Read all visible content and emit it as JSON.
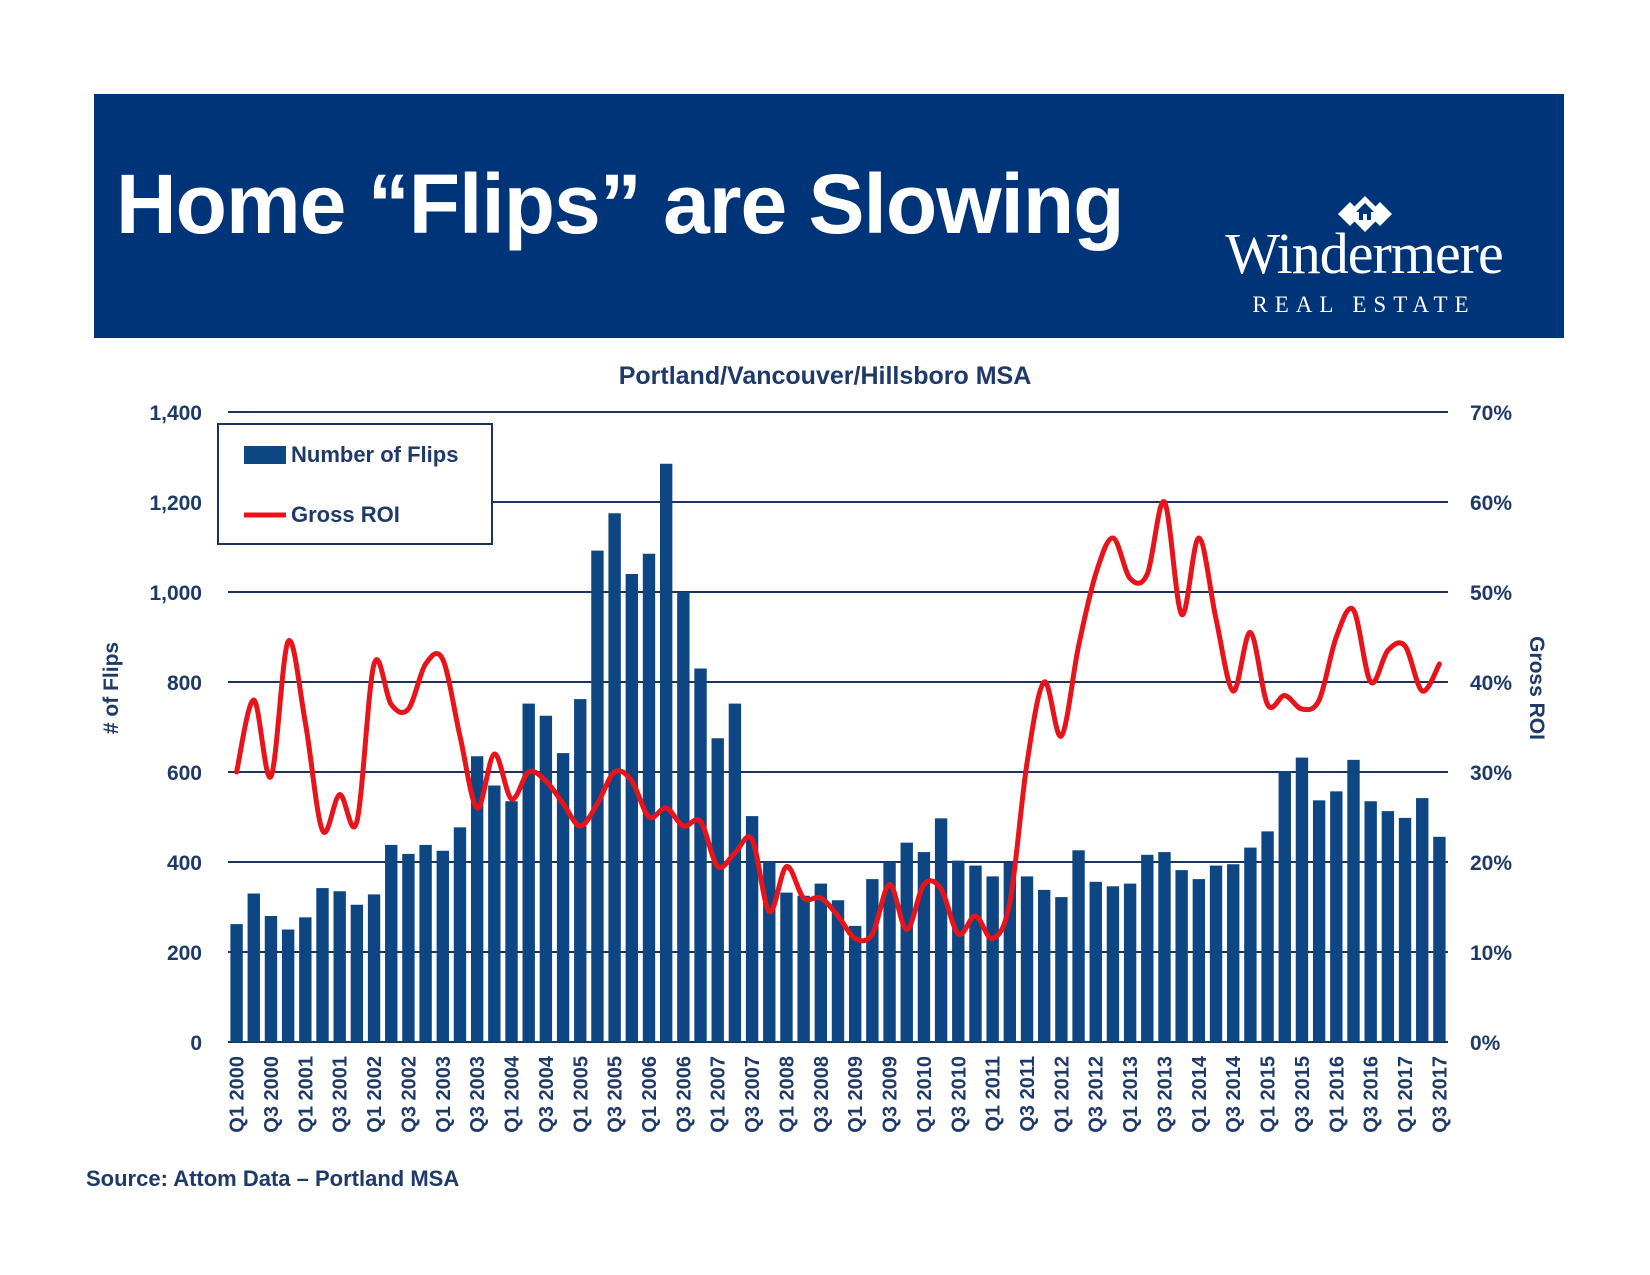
{
  "banner": {
    "title": "Home “Flips” are Slowing",
    "logo_name": "Windermere",
    "logo_sub": "REAL ESTATE",
    "logo_icon": "diamond-house-icon"
  },
  "colors": {
    "navy": "#003478",
    "bar": "#0e4583",
    "line": "#e8141b",
    "text": "#1f3a68"
  },
  "source": "Source: Attom Data – Portland MSA",
  "chart_data": {
    "type": "bar",
    "title": "Portland/Vancouver/Hillsboro MSA",
    "ylabel": "# of Flips",
    "y2label": "Gross ROI",
    "ylim": [
      0,
      1400
    ],
    "y2lim": [
      0,
      70
    ],
    "yticks": [
      "0",
      "200",
      "400",
      "600",
      "800",
      "1,000",
      "1,200",
      "1,400"
    ],
    "y2ticks": [
      "0%",
      "10%",
      "20%",
      "30%",
      "40%",
      "50%",
      "60%",
      "70%"
    ],
    "grid": true,
    "legend_position": "top-left",
    "x_tick_labels": [
      "Q1 2000",
      "Q3 2000",
      "Q1 2001",
      "Q3 2001",
      "Q1 2002",
      "Q3 2002",
      "Q1 2003",
      "Q3 2003",
      "Q1 2004",
      "Q3 2004",
      "Q1 2005",
      "Q3 2005",
      "Q1 2006",
      "Q3 2006",
      "Q1 2007",
      "Q3 2007",
      "Q1 2008",
      "Q3 2008",
      "Q1 2009",
      "Q3 2009",
      "Q1 2010",
      "Q3 2010",
      "Q1 2011",
      "Q3 2011",
      "Q1 2012",
      "Q3 2012",
      "Q1 2013",
      "Q3 2013",
      "Q1 2014",
      "Q3 2014",
      "Q1 2015",
      "Q3 2015",
      "Q1 2016",
      "Q3 2016",
      "Q1 2017",
      "Q3 2017"
    ],
    "series": [
      {
        "name": "Number of Flips",
        "type": "bar",
        "axis": "left",
        "values": [
          262,
          330,
          280,
          250,
          277,
          342,
          335,
          305,
          328,
          438,
          418,
          438,
          425,
          477,
          635,
          570,
          535,
          752,
          725,
          642,
          762,
          1092,
          1175,
          1040,
          1085,
          1285,
          1000,
          830,
          675,
          752,
          502,
          400,
          332,
          325,
          352,
          315,
          258,
          362,
          400,
          443,
          422,
          497,
          403,
          392,
          368,
          398,
          368,
          338,
          322,
          426,
          356,
          346,
          352,
          416,
          422,
          382,
          362,
          392,
          395,
          432,
          468,
          602,
          632,
          537,
          557,
          627,
          535,
          513,
          498,
          542,
          456
        ]
      },
      {
        "name": "Gross ROI",
        "type": "line",
        "axis": "right",
        "unit": "%",
        "values": [
          30,
          38,
          29.5,
          44.5,
          35.5,
          23.5,
          27.5,
          24.5,
          42,
          37.5,
          37,
          42,
          42.5,
          34,
          26,
          32,
          27,
          30,
          29,
          26.5,
          24,
          26.5,
          30,
          29,
          25,
          26,
          24,
          24.5,
          19.5,
          21,
          22.5,
          14.5,
          19.5,
          16,
          16,
          14,
          11.5,
          12,
          17.5,
          12.5,
          17.5,
          17,
          12,
          14,
          11.5,
          15.5,
          31,
          40,
          34,
          44,
          52,
          56,
          51.5,
          52,
          60,
          47.5,
          56,
          47,
          39,
          45.5,
          37.5,
          38.5,
          37,
          38,
          45,
          48,
          40,
          43.5,
          44,
          39,
          42
        ]
      }
    ]
  }
}
